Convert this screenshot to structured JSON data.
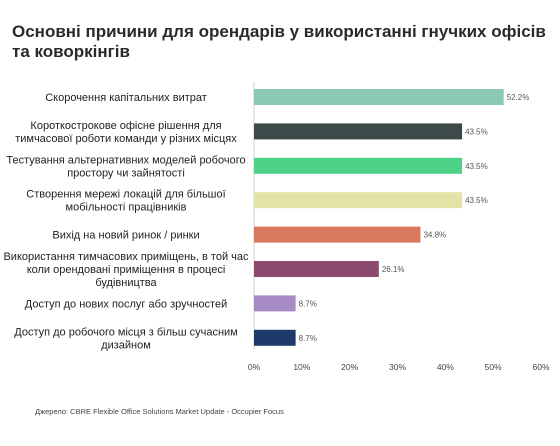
{
  "title": "Основні причини для орендарів у використанні гнучких офісів та коворкінгів",
  "source": "Джерело: CBRE Flexible Office Solutions Market Update - Occupier Focus",
  "chart_data": {
    "type": "bar",
    "orientation": "horizontal",
    "title": "Основні причини для орендарів у використанні гнучких офісів та коворкінгів",
    "xlabel": "",
    "ylabel": "",
    "xlim": [
      0,
      60
    ],
    "ticks": [
      "0%",
      "10%",
      "20%",
      "30%",
      "40%",
      "50%",
      "60%"
    ],
    "tick_values": [
      0,
      10,
      20,
      30,
      40,
      50,
      60
    ],
    "grid": false,
    "legend": "none",
    "categories": [
      [
        "Скорочення капітальних витрат"
      ],
      [
        "Короткострокове офісне рішення для",
        "тимчасової роботи команди у різних місцях"
      ],
      [
        "Тестування альтернативних моделей робочого",
        "простору чи зайнятості"
      ],
      [
        "Створення мережі локацій для більшої",
        "мобільності працівників"
      ],
      [
        "Вихід на новий ринок / ринки"
      ],
      [
        "Використання тимчасових приміщень, в той час",
        "коли орендовані приміщення в процесі",
        "будівництва"
      ],
      [
        "Доступ до нових послуг або зручностей"
      ],
      [
        "Доступ до робочого місця з більш сучасним",
        "дизайном"
      ]
    ],
    "values": [
      52.2,
      43.5,
      43.5,
      43.5,
      34.8,
      26.1,
      8.7,
      8.7
    ],
    "value_labels": [
      "52.2%",
      "43.5%",
      "43.5%",
      "43.5%",
      "34.8%",
      "26.1%",
      "8.7%",
      "8.7%"
    ],
    "colors": [
      "#8cc9b3",
      "#3d4a4a",
      "#4ed189",
      "#e3e3a8",
      "#d9785a",
      "#8c4a6e",
      "#a68ac4",
      "#1e3a6b"
    ]
  }
}
